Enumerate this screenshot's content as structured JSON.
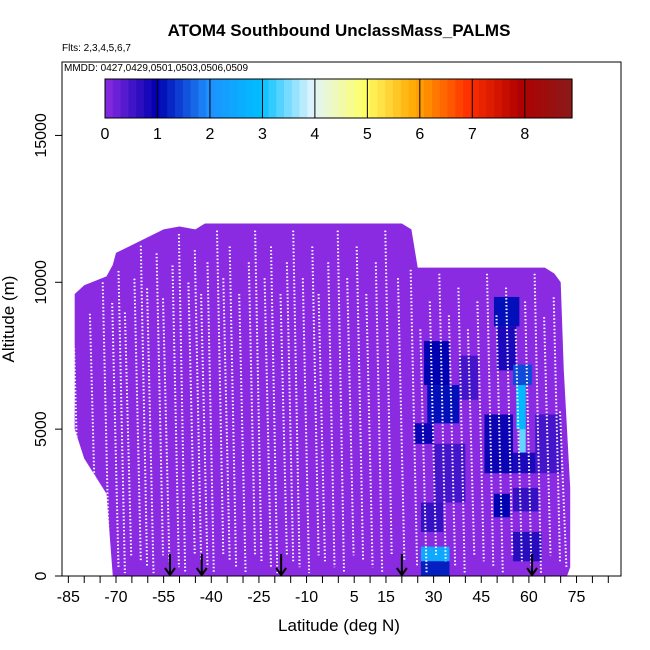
{
  "chart_data": {
    "type": "heatmap",
    "title": "ATOM4 Southbound UnclassMass_PALMS",
    "subtitle_flights": "Flts: 2,3,4,5,6,7",
    "subtitle_dates": "MMDD: 0427,0429,0501,0503,0506,0509",
    "xlabel": "Latitude (deg N)",
    "ylabel": "Altitude (m)",
    "xlim": [
      -87,
      89
    ],
    "ylim": [
      0,
      17500
    ],
    "x_ticks": [
      -85,
      -70,
      -55,
      -40,
      -25,
      -10,
      5,
      15,
      30,
      45,
      60,
      75
    ],
    "x_tick_labels": [
      "-85",
      "-70",
      "-55",
      "-40",
      "-25",
      "-10",
      "5",
      "15",
      "30",
      "45",
      "60",
      "75"
    ],
    "y_ticks": [
      0,
      5000,
      10000,
      15000
    ],
    "y_tick_labels": [
      "0",
      "5000",
      "10000",
      "15000"
    ],
    "colorbar": {
      "min": 0,
      "max": 8.9,
      "tick_values": [
        0,
        1,
        2,
        3,
        4,
        5,
        6,
        7,
        8
      ],
      "tick_labels": [
        "0",
        "1",
        "2",
        "3",
        "4",
        "5",
        "6",
        "7",
        "8"
      ],
      "colors": [
        "#8a2be2",
        "#0000b0",
        "#1e90ff",
        "#00bfff",
        "#e0f4ff",
        "#ffff66",
        "#ffa500",
        "#ff3000",
        "#b00000",
        "#8b1a1a"
      ]
    },
    "coverage_envelope": {
      "lat": [
        -83,
        -80,
        -73,
        -71,
        -70,
        -55,
        -50,
        -45,
        -42,
        -35,
        -25,
        -15,
        -5,
        5,
        15,
        20,
        23,
        25,
        30,
        45,
        55,
        60,
        63,
        65,
        68,
        70,
        71,
        72,
        73
      ],
      "top": [
        9600,
        9900,
        10200,
        10600,
        11000,
        11800,
        11900,
        11800,
        12000,
        12000,
        12000,
        12000,
        12000,
        12000,
        12000,
        12000,
        11800,
        10500,
        10500,
        10500,
        10500,
        10500,
        10500,
        10500,
        10300,
        10000,
        7000,
        5000,
        3000
      ],
      "bottom": [
        5000,
        4000,
        2800,
        0,
        0,
        0,
        0,
        0,
        0,
        0,
        0,
        0,
        0,
        0,
        0,
        0,
        0,
        0,
        0,
        0,
        0,
        0,
        0,
        0,
        0,
        0,
        0,
        0,
        300
      ]
    },
    "enhanced_cells": [
      {
        "lat": [
          27,
          35
        ],
        "alt": [
          6500,
          8000
        ],
        "value": 1.0
      },
      {
        "lat": [
          28,
          38
        ],
        "alt": [
          5200,
          6500
        ],
        "value": 1.1
      },
      {
        "lat": [
          24,
          30
        ],
        "alt": [
          4500,
          5200
        ],
        "value": 0.9
      },
      {
        "lat": [
          30,
          40
        ],
        "alt": [
          2500,
          4500
        ],
        "value": 0.5
      },
      {
        "lat": [
          26,
          33
        ],
        "alt": [
          1500,
          2500
        ],
        "value": 0.6
      },
      {
        "lat": [
          26,
          35
        ],
        "alt": [
          500,
          1000
        ],
        "value": 2.5
      },
      {
        "lat": [
          26,
          35
        ],
        "alt": [
          0,
          500
        ],
        "value": 1.2
      },
      {
        "lat": [
          49,
          57
        ],
        "alt": [
          8500,
          9500
        ],
        "value": 1.1
      },
      {
        "lat": [
          50,
          56
        ],
        "alt": [
          7000,
          8500
        ],
        "value": 0.8
      },
      {
        "lat": [
          55,
          61
        ],
        "alt": [
          6500,
          7200
        ],
        "value": 1.5
      },
      {
        "lat": [
          56,
          59
        ],
        "alt": [
          5000,
          6500
        ],
        "value": 2.8
      },
      {
        "lat": [
          57,
          59
        ],
        "alt": [
          4200,
          5000
        ],
        "value": 3.4
      },
      {
        "lat": [
          52,
          63
        ],
        "alt": [
          3500,
          4200
        ],
        "value": 0.8
      },
      {
        "lat": [
          46,
          55
        ],
        "alt": [
          3500,
          5500
        ],
        "value": 0.9
      },
      {
        "lat": [
          49,
          54
        ],
        "alt": [
          2000,
          2800
        ],
        "value": 1.0
      },
      {
        "lat": [
          55,
          63
        ],
        "alt": [
          2200,
          3000
        ],
        "value": 0.6
      },
      {
        "lat": [
          55,
          64
        ],
        "alt": [
          500,
          1500
        ],
        "value": 0.7
      },
      {
        "lat": [
          62,
          70
        ],
        "alt": [
          3500,
          5500
        ],
        "value": 0.5
      },
      {
        "lat": [
          38,
          44
        ],
        "alt": [
          6000,
          7500
        ],
        "value": 0.5
      }
    ],
    "flight_tracks_lat": [
      -82,
      -77,
      -73,
      -70,
      -68,
      -66,
      -63,
      -61,
      -59,
      -56,
      -54,
      -51,
      -49,
      -46,
      -44,
      -42,
      -40,
      -37,
      -35,
      -33,
      -30,
      -27,
      -25,
      -22,
      -20,
      -17,
      -15,
      -13,
      -10,
      -7,
      -5,
      -2,
      1,
      4,
      7,
      10,
      13,
      16,
      20,
      24,
      27,
      30,
      33,
      36,
      39,
      42,
      45,
      48,
      51,
      54,
      57,
      60,
      63,
      66,
      69,
      71
    ],
    "arrows_lat": [
      -53,
      -43,
      -18,
      20,
      61
    ]
  }
}
